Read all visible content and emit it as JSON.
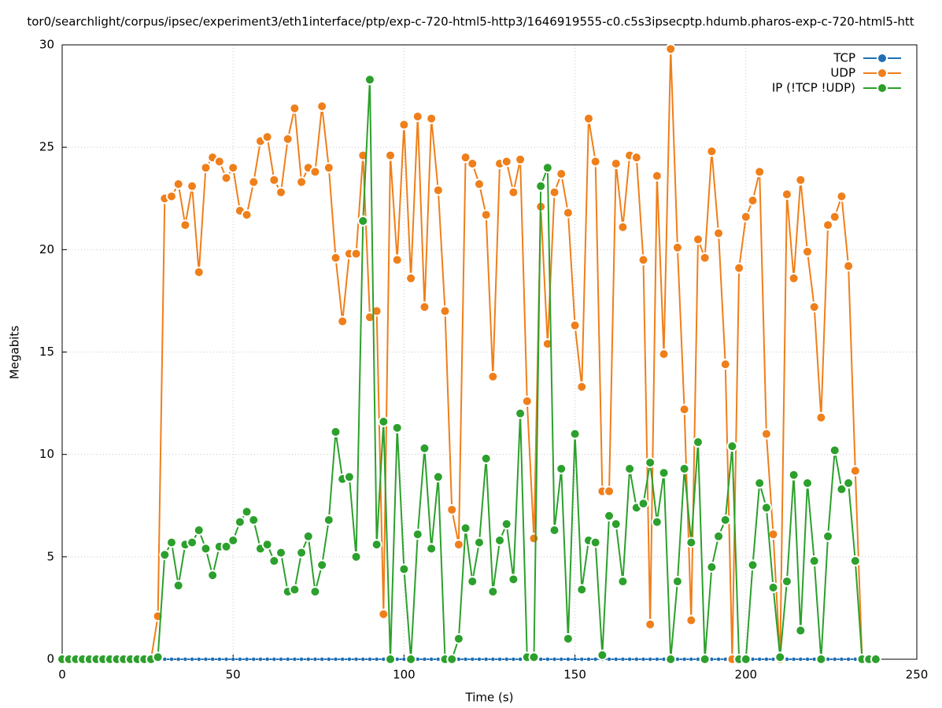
{
  "chart_data": {
    "type": "line",
    "title": "tor0/searchlight/corpus/ipsec/experiment3/eth1interface/ptp/exp-c-720-html5-http3/1646919555-c0.c5s3ipsecptp.hdumb.pharos-exp-c-720-html5-htt",
    "x_label": "Time (s)",
    "y_label": "Megabits",
    "xlim": [
      0,
      250
    ],
    "xticks": [
      0,
      50,
      100,
      150,
      200,
      250
    ],
    "ylim": [
      0,
      30
    ],
    "yticks": [
      0,
      5,
      10,
      15,
      20,
      25,
      30
    ],
    "grid": true,
    "legend": "top-right",
    "x": [
      0,
      2,
      4,
      6,
      8,
      10,
      12,
      14,
      16,
      18,
      20,
      22,
      24,
      26,
      28,
      30,
      32,
      34,
      36,
      38,
      40,
      42,
      44,
      46,
      48,
      50,
      52,
      54,
      56,
      58,
      60,
      62,
      64,
      66,
      68,
      70,
      72,
      74,
      76,
      78,
      80,
      82,
      84,
      86,
      88,
      90,
      92,
      94,
      96,
      98,
      100,
      102,
      104,
      106,
      108,
      110,
      112,
      114,
      116,
      118,
      120,
      122,
      124,
      126,
      128,
      130,
      132,
      134,
      136,
      138,
      140,
      142,
      144,
      146,
      148,
      150,
      152,
      154,
      156,
      158,
      160,
      162,
      164,
      166,
      168,
      170,
      172,
      174,
      176,
      178,
      180,
      182,
      184,
      186,
      188,
      190,
      192,
      194,
      196,
      198,
      200,
      202,
      204,
      206,
      208,
      210,
      212,
      214,
      216,
      218,
      220,
      222,
      224,
      226,
      228,
      230,
      232,
      234,
      236,
      238
    ],
    "series": [
      {
        "name": "TCP",
        "color": "#1f6fb4",
        "values": [
          0,
          0,
          0,
          0,
          0,
          0,
          0,
          0,
          0,
          0,
          0,
          0,
          0,
          0,
          0,
          0,
          0,
          0,
          0,
          0,
          0,
          0,
          0,
          0,
          0,
          0,
          0,
          0,
          0,
          0,
          0,
          0,
          0,
          0,
          0,
          0,
          0,
          0,
          0,
          0,
          0,
          0,
          0,
          0,
          0,
          0,
          0,
          0,
          0,
          0,
          0,
          0,
          0,
          0,
          0,
          0,
          0,
          0,
          0,
          0,
          0,
          0,
          0,
          0,
          0,
          0,
          0,
          0,
          0,
          0,
          0,
          0,
          0,
          0,
          0,
          0,
          0,
          0,
          0,
          0,
          0,
          0,
          0,
          0,
          0,
          0,
          0,
          0,
          0,
          0,
          0,
          0,
          0,
          0,
          0,
          0,
          0,
          0,
          0,
          0,
          0,
          0,
          0,
          0,
          0,
          0,
          0,
          0,
          0,
          0,
          0,
          0,
          0,
          0,
          0,
          0,
          0,
          0,
          0,
          0
        ]
      },
      {
        "name": "UDP",
        "color": "#ef7f1a",
        "values": [
          0,
          0,
          0,
          0,
          0,
          0,
          0,
          0,
          0,
          0,
          0,
          0,
          0,
          0,
          2.1,
          22.5,
          22.6,
          23.2,
          21.2,
          23.1,
          18.9,
          24.0,
          24.5,
          24.3,
          23.5,
          24.0,
          21.9,
          21.7,
          23.3,
          25.3,
          25.5,
          23.4,
          22.8,
          25.4,
          26.9,
          23.3,
          24.0,
          23.8,
          27.0,
          24.0,
          19.6,
          16.5,
          19.8,
          19.8,
          24.6,
          16.7,
          17.0,
          2.2,
          24.6,
          19.5,
          26.1,
          18.6,
          26.5,
          17.2,
          26.4,
          22.9,
          17.0,
          7.3,
          5.6,
          24.5,
          24.2,
          23.2,
          21.7,
          13.8,
          24.2,
          24.3,
          22.8,
          24.4,
          12.6,
          5.9,
          22.1,
          15.4,
          22.8,
          23.7,
          21.8,
          16.3,
          13.3,
          26.4,
          24.3,
          8.2,
          8.2,
          24.2,
          21.1,
          24.6,
          24.5,
          19.5,
          1.7,
          23.6,
          14.9,
          29.8,
          20.1,
          12.2,
          1.9,
          20.5,
          19.6,
          24.8,
          20.8,
          14.4,
          0,
          19.1,
          21.6,
          22.4,
          23.8,
          11.0,
          6.1,
          0,
          22.7,
          18.6,
          23.4,
          19.9,
          17.2,
          11.8,
          21.2,
          21.6,
          22.6,
          19.2,
          9.2,
          0,
          0,
          0
        ]
      },
      {
        "name": "IP (!TCP !UDP)",
        "color": "#2ca02c",
        "values": [
          0,
          0,
          0,
          0,
          0,
          0,
          0,
          0,
          0,
          0,
          0,
          0,
          0,
          0,
          0.1,
          5.1,
          5.7,
          3.6,
          5.6,
          5.7,
          6.3,
          5.4,
          4.1,
          5.5,
          5.5,
          5.8,
          6.7,
          7.2,
          6.8,
          5.4,
          5.6,
          4.8,
          5.2,
          3.3,
          3.4,
          5.2,
          6.0,
          3.3,
          4.6,
          6.8,
          11.1,
          8.8,
          8.9,
          5.0,
          21.4,
          28.3,
          5.6,
          11.6,
          0,
          11.3,
          4.4,
          0,
          6.1,
          10.3,
          5.4,
          8.9,
          0,
          0,
          1.0,
          6.4,
          3.8,
          5.7,
          9.8,
          3.3,
          5.8,
          6.6,
          3.9,
          12.0,
          0.1,
          0.1,
          23.1,
          24.0,
          6.3,
          9.3,
          1.0,
          11.0,
          3.4,
          5.8,
          5.7,
          0.2,
          7.0,
          6.6,
          3.8,
          9.3,
          7.4,
          7.6,
          9.6,
          6.7,
          9.1,
          0,
          3.8,
          9.3,
          5.7,
          10.6,
          0,
          4.5,
          6.0,
          6.8,
          10.4,
          0,
          0,
          4.6,
          8.6,
          7.4,
          3.5,
          0.1,
          3.8,
          9.0,
          1.4,
          8.6,
          4.8,
          0,
          6.0,
          10.2,
          8.3,
          8.6,
          4.8,
          0,
          0,
          0
        ]
      }
    ]
  }
}
